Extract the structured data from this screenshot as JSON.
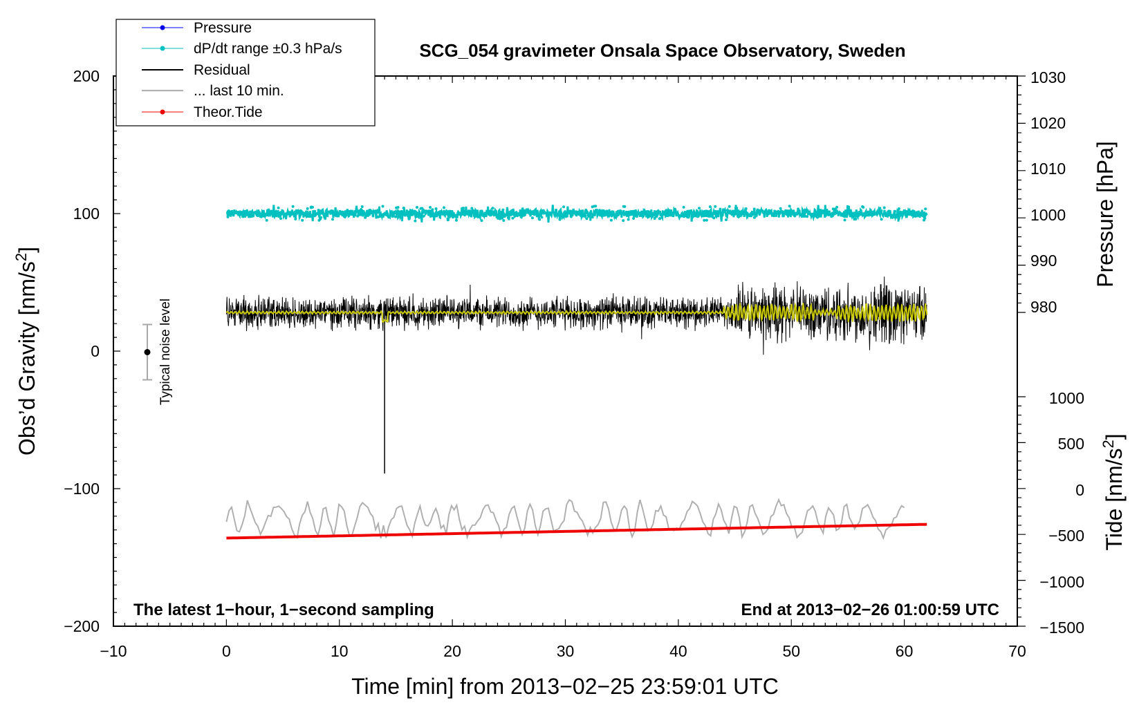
{
  "chart_data": {
    "type": "line",
    "title": "SCG_054 gravimeter Onsala Space Observatory, Sweden",
    "xlabel": "Time [min] from 2013−02−25 23:59:01 UTC",
    "ylabel_left_main": "Obs’d Gravity [nm/s",
    "ylabel_left_sup": "2",
    "ylabel_left_end": "]",
    "ylabel_right_pressure": "Pressure [hPa]",
    "ylabel_right_tide_main": "Tide [nm/s",
    "ylabel_right_tide_sup": "2",
    "ylabel_right_tide_end": "]",
    "xlim": [
      -10,
      70
    ],
    "ylim_left": [
      -200,
      200
    ],
    "ylim_pressure": [
      980,
      1030
    ],
    "ylim_tide": [
      -1500,
      1000
    ],
    "x_ticks": [
      "−10",
      "0",
      "10",
      "20",
      "30",
      "40",
      "50",
      "60",
      "70"
    ],
    "y_left_ticks": [
      "200",
      "100",
      "0",
      "−100",
      "−200"
    ],
    "pressure_ticks": [
      "1030",
      "1020",
      "1010",
      "1000",
      "990",
      "980"
    ],
    "tide_ticks": [
      "1000",
      "500",
      "0",
      "−500",
      "−1000",
      "−1500"
    ],
    "annotation_left": "The latest 1−hour, 1−second sampling",
    "annotation_right": "End at 2013−02−26 01:00:59 UTC",
    "noise_label": "Typical noise level",
    "noise_bar": {
      "x": -7,
      "center": 0,
      "half_range": 20
    },
    "legend": [
      {
        "label": "Pressure",
        "color": "#0000ee",
        "marker": true
      },
      {
        "label": "dP/dt range ±0.3 hPa/s",
        "color": "#00c0c0",
        "marker": true
      },
      {
        "label": "Residual",
        "color": "#000000",
        "marker": false
      },
      {
        "label": "... last 10 min.",
        "color": "#b0b0b0",
        "marker": false
      },
      {
        "label": "Theor.Tide",
        "color": "#ee0000",
        "marker": true
      }
    ],
    "series": [
      {
        "name": "dP/dt range ±0.3 hPa/s",
        "color": "#00c0c0",
        "x_range": [
          0,
          62
        ],
        "level_gravity_units": 100,
        "spread": 3
      },
      {
        "name": "Residual",
        "color": "#000000",
        "x_range": [
          0,
          62
        ],
        "level_gravity_units": 28,
        "amplitude_early": 10,
        "amplitude_late": 18,
        "spike": {
          "x": 14,
          "y_min": -89
        }
      },
      {
        "name": "Residual smoothed",
        "color": "#c8c800",
        "x_range": [
          0,
          62
        ],
        "level_gravity_units": 28
      },
      {
        "name": "... last 10 min.",
        "color": "#b0b0b0",
        "x_range": [
          0,
          60
        ],
        "level_gravity_units": -122,
        "amplitude": 10
      },
      {
        "name": "Theor.Tide",
        "color": "#ee0000",
        "x_range": [
          0,
          62
        ],
        "y_start_tide": -540,
        "y_end_tide": -390
      }
    ]
  },
  "colors": {
    "pressure": "#0000ee",
    "dpdt": "#00c0c0",
    "residual": "#000000",
    "smoothed": "#c8c800",
    "last10": "#b0b0b0",
    "tide": "#ee0000"
  }
}
